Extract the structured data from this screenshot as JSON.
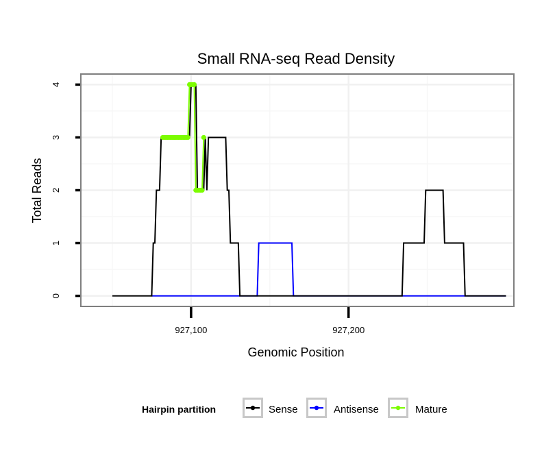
{
  "chart_data": {
    "type": "line",
    "title": "Small RNA-seq Read Density",
    "xlabel": "Genomic Position",
    "ylabel": "Total Reads",
    "xlim": [
      927030,
      927305
    ],
    "ylim": [
      -0.2,
      4.2
    ],
    "x_ticks": [
      927100,
      927200
    ],
    "x_tick_labels": [
      "927,100",
      "927,200"
    ],
    "y_ticks": [
      0,
      1,
      2,
      3,
      4
    ],
    "y_tick_labels": [
      "0",
      "1",
      "2",
      "3",
      "4"
    ],
    "grid": true,
    "series": [
      {
        "name": "Sense",
        "color": "#000000",
        "x": [
          927050,
          927075,
          927076,
          927077,
          927078,
          927079,
          927080,
          927081,
          927082,
          927099,
          927100,
          927101,
          927103,
          927104,
          927108,
          927109,
          927110,
          927111,
          927112,
          927122,
          927123,
          927124,
          927125,
          927126,
          927130,
          927131,
          927132,
          927234,
          927235,
          927236,
          927237,
          927248,
          927249,
          927250,
          927251,
          927260,
          927261,
          927262,
          927263,
          927273,
          927274,
          927275,
          927276,
          927300
        ],
        "values": [
          0,
          0,
          1,
          1,
          2,
          2,
          2,
          3,
          3,
          3,
          4,
          4,
          4,
          2,
          2,
          3,
          2,
          3,
          3,
          3,
          2,
          2,
          1,
          1,
          1,
          0,
          0,
          0,
          1,
          1,
          1,
          1,
          2,
          2,
          2,
          2,
          1,
          1,
          1,
          1,
          0,
          0,
          0,
          0
        ]
      },
      {
        "name": "Antisense",
        "color": "#0000ff",
        "x": [
          927075,
          927142,
          927143,
          927164,
          927165,
          927300
        ],
        "values": [
          0,
          0,
          1,
          1,
          0,
          0
        ]
      },
      {
        "name": "Mature",
        "color": "#7cfc00",
        "x": [
          927082,
          927083,
          927084,
          927085,
          927086,
          927087,
          927088,
          927089,
          927090,
          927091,
          927092,
          927093,
          927094,
          927095,
          927096,
          927097,
          927098,
          927099,
          927100,
          927101,
          927102,
          927103,
          927104,
          927105,
          927106,
          927107,
          927108
        ],
        "values": [
          3,
          3,
          3,
          3,
          3,
          3,
          3,
          3,
          3,
          3,
          3,
          3,
          3,
          3,
          3,
          3,
          3,
          4,
          4,
          4,
          4,
          2,
          2,
          2,
          2,
          2,
          3
        ]
      }
    ],
    "legend": {
      "title": "Hairpin partition",
      "placement": "bottom",
      "entries": [
        "Sense",
        "Antisense",
        "Mature"
      ]
    }
  }
}
